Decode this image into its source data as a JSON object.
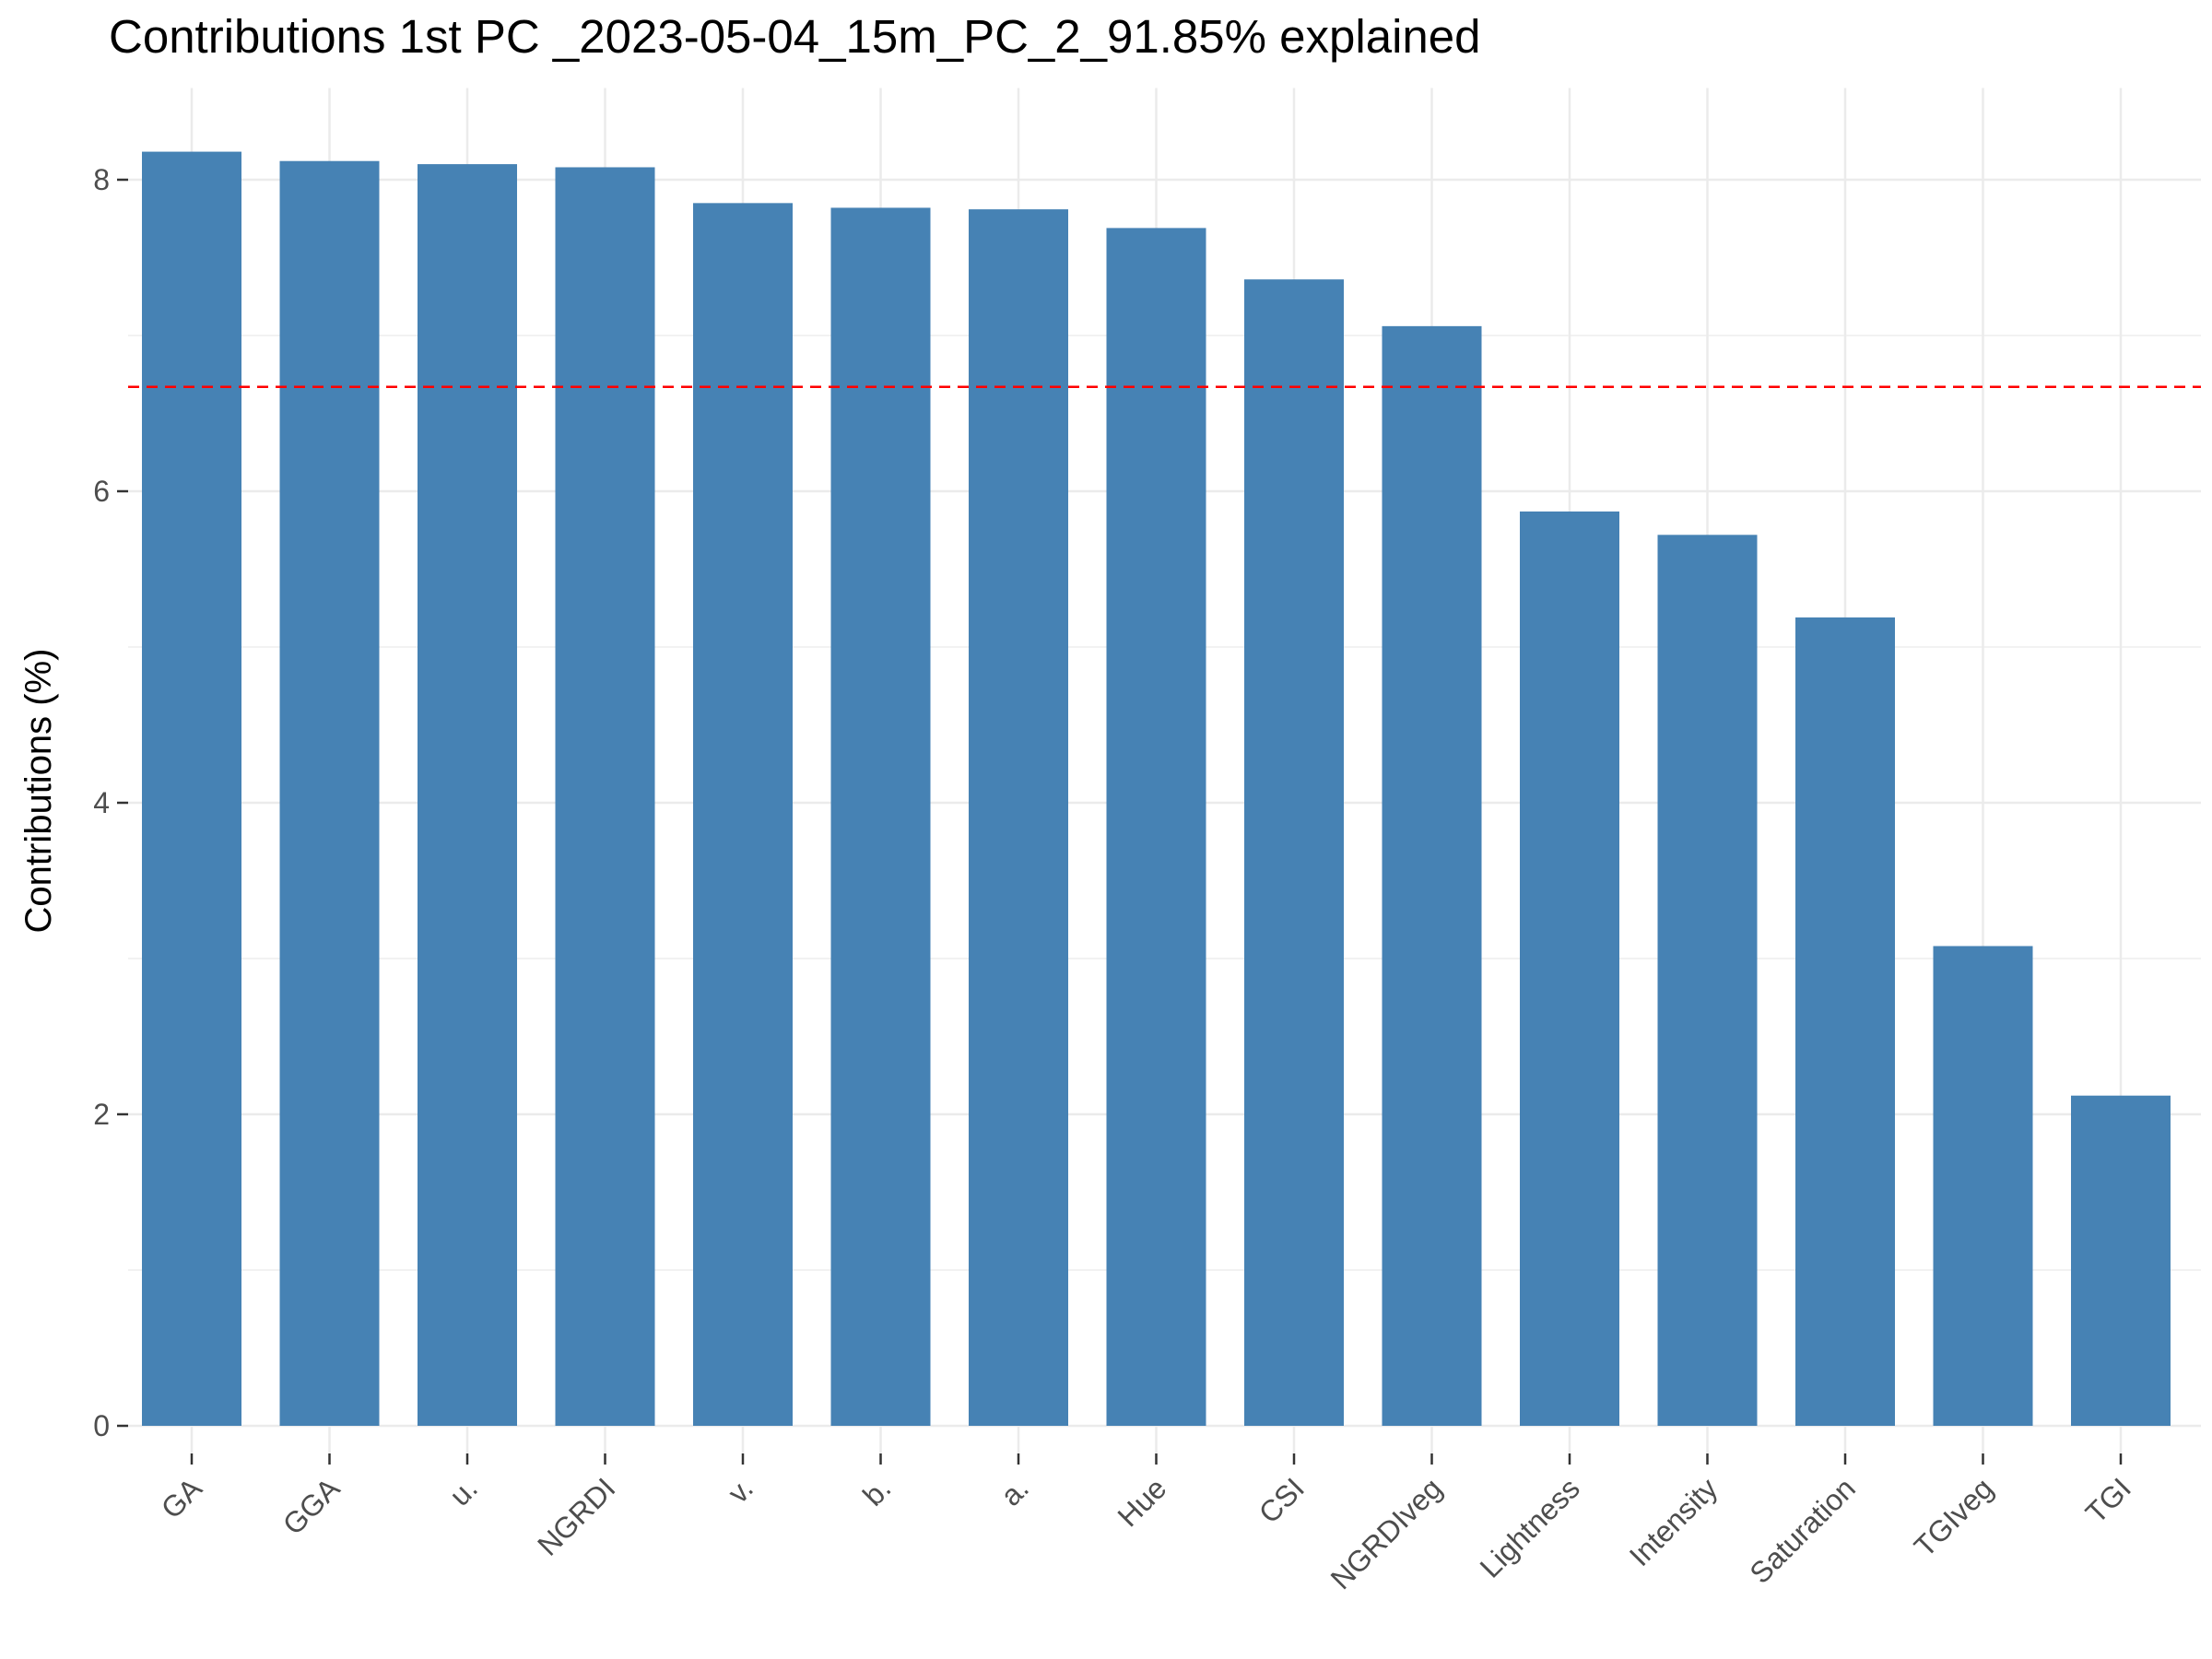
{
  "chart_data": {
    "type": "bar",
    "title": "Contributions 1st PC _2023-05-04_15m_PC_2_91.85% explained",
    "xlabel": "",
    "ylabel": "Contributions (%)",
    "categories": [
      "GA",
      "GGA",
      "u.",
      "NGRDI",
      "v.",
      "b.",
      "a.",
      "Hue",
      "CSI",
      "NGRDIveg",
      "Lightness",
      "Intensity",
      "Saturation",
      "TGIveg",
      "TGI"
    ],
    "values": [
      8.18,
      8.12,
      8.1,
      8.08,
      7.85,
      7.82,
      7.81,
      7.69,
      7.36,
      7.06,
      5.87,
      5.72,
      5.19,
      3.08,
      2.12
    ],
    "reference_line": 6.67,
    "ylim": [
      0,
      8.5
    ],
    "y_ticks": [
      0,
      2,
      4,
      6,
      8
    ],
    "grid": true,
    "legend": "none",
    "colors": {
      "bar": "#4682b4",
      "reference_line": "#ff0000",
      "grid": "#ebebeb",
      "tick_text": "#4d4d4d"
    }
  }
}
